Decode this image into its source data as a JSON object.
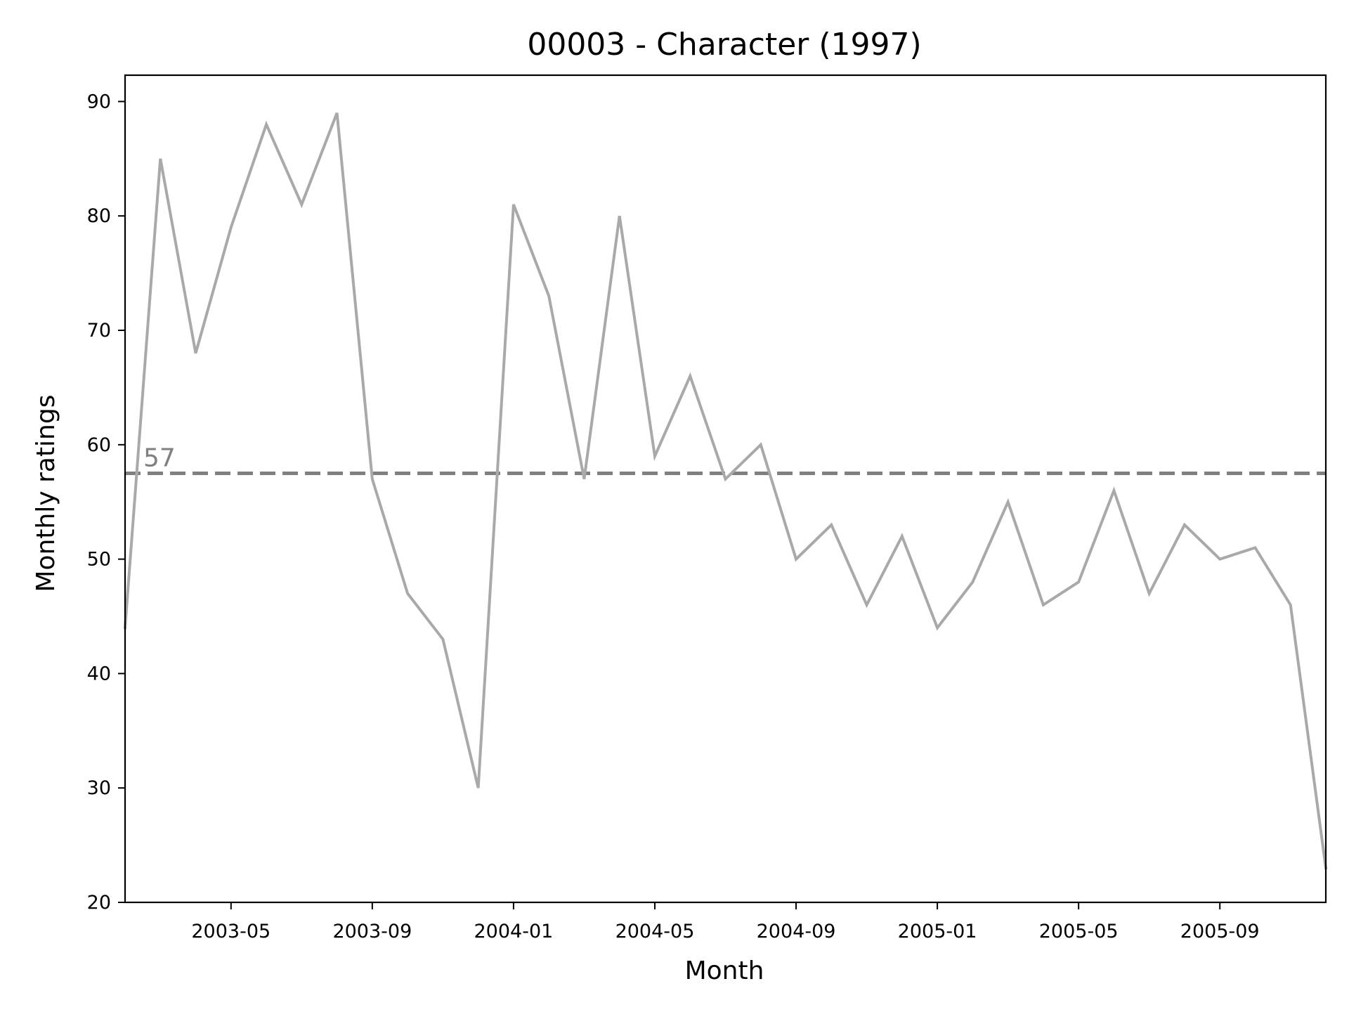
{
  "chart_data": {
    "type": "line",
    "title": "00003 - Character (1997)",
    "xlabel": "Month",
    "ylabel": "Monthly ratings",
    "ylim": [
      20,
      92.3
    ],
    "xlim": [
      "2003-02",
      "2005-12"
    ],
    "yticks": [
      20,
      30,
      40,
      50,
      60,
      70,
      80,
      90
    ],
    "xticks": [
      "2003-05",
      "2003-09",
      "2004-01",
      "2004-05",
      "2004-09",
      "2005-01",
      "2005-05",
      "2005-09"
    ],
    "grid": false,
    "legend": "none",
    "x": [
      "2003-02",
      "2003-03",
      "2003-04",
      "2003-05",
      "2003-06",
      "2003-07",
      "2003-08",
      "2003-09",
      "2003-10",
      "2003-11",
      "2003-12",
      "2004-01",
      "2004-02",
      "2004-03",
      "2004-04",
      "2004-05",
      "2004-06",
      "2004-07",
      "2004-08",
      "2004-09",
      "2004-10",
      "2004-11",
      "2004-12",
      "2005-01",
      "2005-02",
      "2005-03",
      "2005-04",
      "2005-05",
      "2005-06",
      "2005-07",
      "2005-08",
      "2005-09",
      "2005-10",
      "2005-11",
      "2005-12"
    ],
    "series": [
      {
        "color": "#a9a9a9",
        "values": [
          44,
          85,
          68,
          79,
          88,
          81,
          89,
          57,
          47,
          43,
          30,
          81,
          73,
          57,
          80,
          59,
          66,
          57,
          60,
          50,
          53,
          46,
          52,
          44,
          48,
          55,
          46,
          48,
          56,
          47,
          53,
          50,
          51,
          46,
          23
        ]
      }
    ],
    "reference_line": {
      "value": 57.5,
      "label": "57",
      "style": "dashed",
      "color": "#808080"
    }
  }
}
